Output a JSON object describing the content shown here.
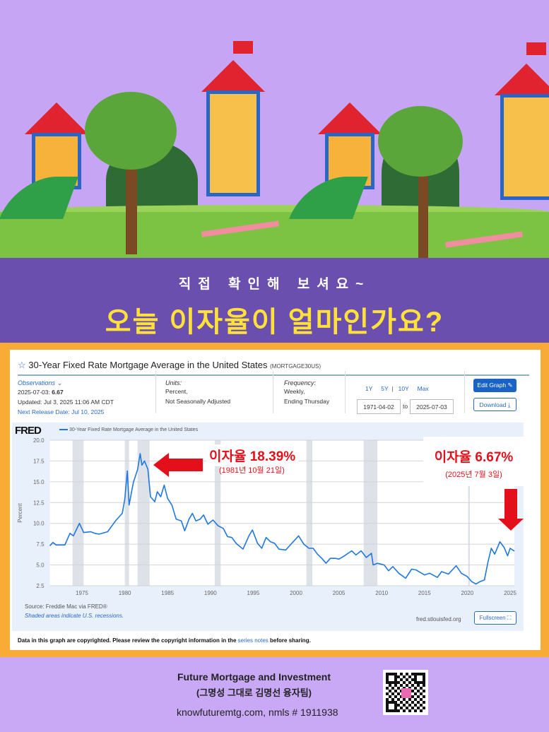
{
  "banner": {
    "subtitle": "직접 확인해 보셔요~",
    "headline": "오늘 이자율이 얼마인가요?"
  },
  "fred": {
    "title": "30-Year Fixed Rate Mortgage Average in the United States",
    "series_id": "(MORTGAGE30US)",
    "observations_label": "Observations",
    "obs_date": "2025-07-03:",
    "obs_value": "6.67",
    "updated": "Updated: Jul 3, 2025 11:06 AM CDT",
    "next_release": "Next Release Date: Jul 10, 2025",
    "units_label": "Units:",
    "units_1": "Percent,",
    "units_2": "Not Seasonally Adjusted",
    "freq_label": "Frequency:",
    "freq_1": "Weekly,",
    "freq_2": "Ending Thursday",
    "ranges": [
      "1Y",
      "5Y",
      "10Y",
      "Max"
    ],
    "date_from": "1971-04-02",
    "date_to_label": "to",
    "date_to": "2025-07-03",
    "edit_graph": "Edit Graph",
    "download": "Download",
    "logo": "FRED",
    "legend": "30-Year Fixed Rate Mortgage Average in the United States",
    "source": "Source: Freddie Mac via FRED®",
    "shaded": "Shaded areas indicate U.S. recessions.",
    "site": "fred.stlouisfed.org",
    "fullscreen": "Fullscreen",
    "copyright_1": "Data in this graph are copyrighted. Please review the copyright information in the",
    "copyright_link": "series notes",
    "copyright_2": "before sharing."
  },
  "annotations": {
    "peak_rate": "이자율  18.39%",
    "peak_date": "(1981년 10월 21일)",
    "current_rate": "이자율 6.67%",
    "current_date": "(2025년 7월 3일)",
    "color": "#e3101b"
  },
  "footer": {
    "company": "Future Mortgage and Investment",
    "team": "(그명성 그대로 김명선 융자팀)",
    "contact": "knowfuturemtg.com, nmls # 1911938"
  },
  "chart_data": {
    "type": "line",
    "ylabel": "Percent",
    "ylim": [
      2.5,
      20.0
    ],
    "xlim": [
      1971.25,
      2025.5
    ],
    "yticks": [
      "2.5",
      "5.0",
      "7.5",
      "10.0",
      "12.5",
      "15.0",
      "17.5",
      "20.0"
    ],
    "xticks": [
      "1975",
      "1980",
      "1985",
      "1990",
      "1995",
      "2000",
      "2005",
      "2010",
      "2015",
      "2020",
      "2025"
    ],
    "grid": true,
    "line_color": "#1f77e0",
    "recessions": [
      [
        1973.9,
        1975.2
      ],
      [
        1980.0,
        1980.5
      ],
      [
        1981.5,
        1982.9
      ],
      [
        1990.5,
        1991.2
      ],
      [
        2001.2,
        2001.9
      ],
      [
        2007.9,
        2009.5
      ],
      [
        2020.1,
        2020.3
      ]
    ],
    "x": [
      1971.25,
      1971.6,
      1972,
      1973,
      1973.6,
      1974,
      1974.7,
      1975.2,
      1976,
      1976.5,
      1977,
      1978,
      1978.5,
      1979,
      1979.7,
      1980.0,
      1980.3,
      1980.5,
      1981,
      1981.5,
      1981.8,
      1982,
      1982.3,
      1982.7,
      1983,
      1983.5,
      1983.8,
      1984.2,
      1984.6,
      1985,
      1985.5,
      1986,
      1986.6,
      1987,
      1987.5,
      1987.9,
      1988.3,
      1988.8,
      1989.2,
      1989.7,
      1990.3,
      1990.9,
      1991.5,
      1992,
      1992.5,
      1993,
      1993.8,
      1994.5,
      1994.9,
      1995.5,
      1996,
      1996.5,
      1997,
      1997.5,
      1998,
      1998.8,
      1999.5,
      2000.3,
      2000.9,
      2001.5,
      2002,
      2002.5,
      2003,
      2003.5,
      2004,
      2004.6,
      2005,
      2005.5,
      2006.5,
      2007,
      2007.6,
      2008.2,
      2008.8,
      2009,
      2009.5,
      2010.3,
      2010.8,
      2011.3,
      2012,
      2012.8,
      2013.5,
      2014,
      2015,
      2015.6,
      2016.5,
      2017,
      2017.8,
      2018.7,
      2019.3,
      2020,
      2020.5,
      2021,
      2021.5,
      2022,
      2022.4,
      2022.8,
      2023.2,
      2023.8,
      2024.3,
      2024.7,
      2025,
      2025.5
    ],
    "y": [
      7.3,
      7.7,
      7.4,
      7.4,
      8.8,
      8.5,
      10.0,
      8.9,
      9.0,
      8.8,
      8.7,
      9.0,
      9.7,
      10.4,
      11.2,
      12.9,
      16.3,
      12.2,
      14.9,
      16.5,
      18.39,
      17.0,
      17.5,
      16.5,
      13.2,
      12.6,
      13.8,
      13.2,
      14.6,
      13.0,
      12.2,
      10.5,
      10.3,
      9.1,
      10.5,
      11.2,
      10.3,
      10.5,
      11.0,
      9.9,
      10.4,
      9.7,
      9.4,
      8.4,
      8.3,
      7.6,
      6.9,
      8.5,
      9.2,
      7.6,
      7.0,
      8.3,
      7.8,
      7.6,
      6.9,
      6.8,
      7.6,
      8.5,
      7.5,
      7.0,
      7.0,
      6.3,
      5.8,
      5.2,
      5.8,
      5.8,
      5.7,
      6.0,
      6.7,
      6.2,
      6.7,
      5.9,
      6.4,
      5.0,
      5.2,
      5.0,
      4.3,
      4.8,
      4.0,
      3.4,
      4.5,
      4.4,
      3.8,
      4.0,
      3.5,
      4.2,
      3.9,
      4.9,
      4.0,
      3.6,
      3.0,
      2.7,
      3.0,
      3.2,
      5.3,
      7.0,
      6.3,
      7.79,
      7.1,
      6.1,
      7.0,
      6.67
    ]
  }
}
